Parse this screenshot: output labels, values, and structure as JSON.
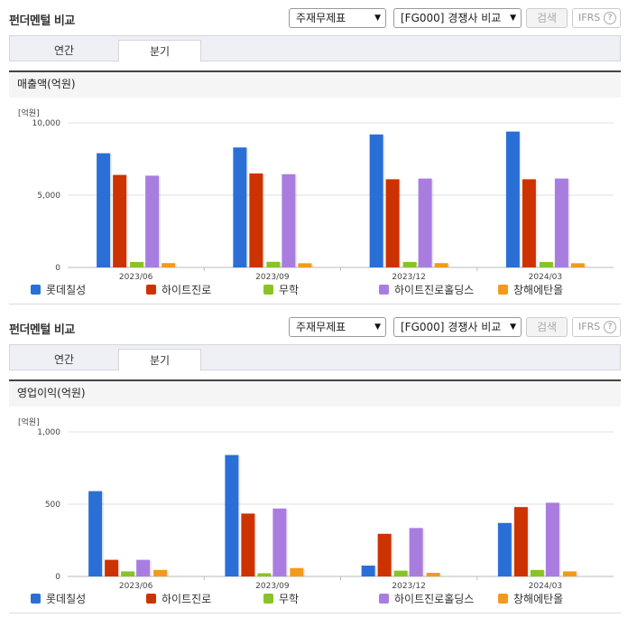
{
  "sections": [
    {
      "title": "펀더멘털 비교",
      "select1": "주재무제표",
      "select2": "[FG000] 경쟁사 비교",
      "search_label": "검색",
      "ifrs_label": "IFRS",
      "help_icon": "?",
      "tabs": [
        "연간",
        "분기"
      ],
      "active_tab": "분기",
      "card_title": "매출액(억원)",
      "unit": "[억원]"
    },
    {
      "title": "펀더멘털 비교",
      "select1": "주재무제표",
      "select2": "[FG000] 경쟁사 비교",
      "search_label": "검색",
      "ifrs_label": "IFRS",
      "help_icon": "?",
      "tabs": [
        "연간",
        "분기"
      ],
      "active_tab": "분기",
      "card_title": "영업이익(억원)",
      "unit": "[억원]"
    }
  ],
  "colors": {
    "롯데칠성": "#2a6fd6",
    "하이트진로": "#cc3300",
    "무학": "#88c425",
    "하이트진로홀딩스": "#a97de0",
    "창해에탄올": "#f39a1b"
  },
  "chart_data": [
    {
      "type": "bar",
      "title": "매출액(억원)",
      "ylabel": "[억원]",
      "categories": [
        "2023/06",
        "2023/09",
        "2023/12",
        "2024/03"
      ],
      "ylim": [
        0,
        10000
      ],
      "yticks": [
        "0",
        "5,000",
        "10,000"
      ],
      "ytick_values": [
        0,
        5000,
        10000
      ],
      "grid": true,
      "legend": "bottom",
      "series": [
        {
          "name": "롯데칠성",
          "values": [
            7900,
            8300,
            9200,
            9400
          ]
        },
        {
          "name": "하이트진로",
          "values": [
            6400,
            6500,
            6100,
            6100
          ]
        },
        {
          "name": "무학",
          "values": [
            380,
            390,
            380,
            380
          ]
        },
        {
          "name": "하이트진로홀딩스",
          "values": [
            6350,
            6450,
            6150,
            6150
          ]
        },
        {
          "name": "창해에탄올",
          "values": [
            300,
            290,
            300,
            290
          ]
        }
      ]
    },
    {
      "type": "bar",
      "title": "영업이익(억원)",
      "ylabel": "[억원]",
      "categories": [
        "2023/06",
        "2023/09",
        "2023/12",
        "2024/03"
      ],
      "ylim": [
        0,
        1000
      ],
      "yticks": [
        "0",
        "500",
        "1,000"
      ],
      "ytick_values": [
        0,
        500,
        1000
      ],
      "grid": true,
      "legend": "bottom",
      "series": [
        {
          "name": "롯데칠성",
          "values": [
            590,
            840,
            75,
            370
          ]
        },
        {
          "name": "하이트진로",
          "values": [
            115,
            435,
            295,
            480
          ]
        },
        {
          "name": "무학",
          "values": [
            35,
            22,
            40,
            45
          ]
        },
        {
          "name": "하이트진로홀딩스",
          "values": [
            115,
            470,
            335,
            510
          ]
        },
        {
          "name": "창해에탄올",
          "values": [
            45,
            58,
            25,
            35
          ]
        }
      ]
    }
  ]
}
